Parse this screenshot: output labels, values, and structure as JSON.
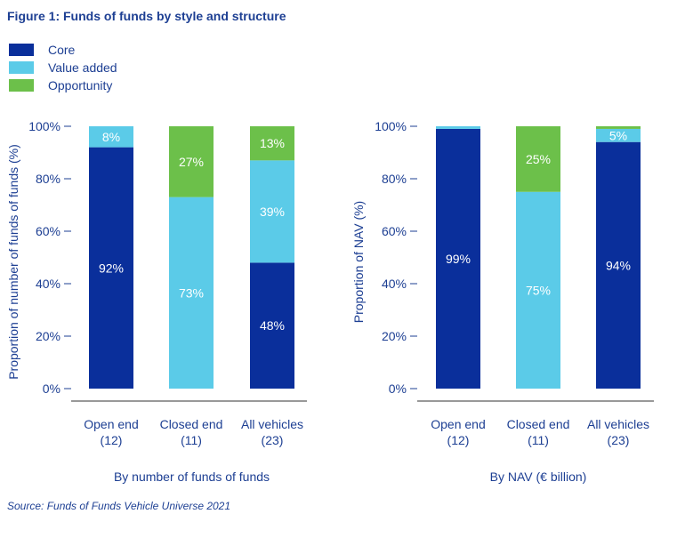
{
  "figure_title": "Figure 1: Funds of funds by style and structure",
  "legend": [
    {
      "label": "Core",
      "color": "#0a2f9b"
    },
    {
      "label": "Value added",
      "color": "#5bcbe8"
    },
    {
      "label": "Opportunity",
      "color": "#6cc04a"
    }
  ],
  "source": "Source: Funds of Funds Vehicle Universe 2021",
  "chart_data": [
    {
      "type": "bar",
      "stacked": true,
      "categories": [
        "Open end\n(12)",
        "Closed end\n(11)",
        "All vehicles\n(23)"
      ],
      "series": [
        {
          "name": "Core",
          "values": [
            92,
            0,
            48
          ],
          "labels": [
            "92%",
            "",
            "48%"
          ],
          "color": "#0a2f9b"
        },
        {
          "name": "Value added",
          "values": [
            8,
            73,
            39
          ],
          "labels": [
            "8%",
            "73%",
            "39%"
          ],
          "color": "#5bcbe8"
        },
        {
          "name": "Opportunity",
          "values": [
            0,
            27,
            13
          ],
          "labels": [
            "",
            "27%",
            "13%"
          ],
          "color": "#6cc04a"
        }
      ],
      "ylabel": "Proportion of number of funds of funds (%)",
      "xlabel": "By number of funds of funds",
      "yticks": [
        "0%",
        "20%",
        "40%",
        "60%",
        "80%",
        "100%"
      ],
      "ylim": [
        0,
        100
      ]
    },
    {
      "type": "bar",
      "stacked": true,
      "categories": [
        "Open end\n(12)",
        "Closed end\n(11)",
        "All vehicles\n(23)"
      ],
      "series": [
        {
          "name": "Core",
          "values": [
            99,
            0,
            94
          ],
          "labels": [
            "99%",
            "",
            "94%"
          ],
          "color": "#0a2f9b"
        },
        {
          "name": "Value added",
          "values": [
            1,
            75,
            5
          ],
          "labels": [
            "",
            "75%",
            "5%"
          ],
          "color": "#5bcbe8"
        },
        {
          "name": "Opportunity",
          "values": [
            0,
            25,
            1
          ],
          "labels": [
            "",
            "25%",
            ""
          ],
          "color": "#6cc04a"
        }
      ],
      "ylabel": "Proportion of NAV (%)",
      "xlabel": "By NAV (€ billion)",
      "yticks": [
        "0%",
        "20%",
        "40%",
        "60%",
        "80%",
        "100%"
      ],
      "ylim": [
        0,
        100
      ]
    }
  ]
}
